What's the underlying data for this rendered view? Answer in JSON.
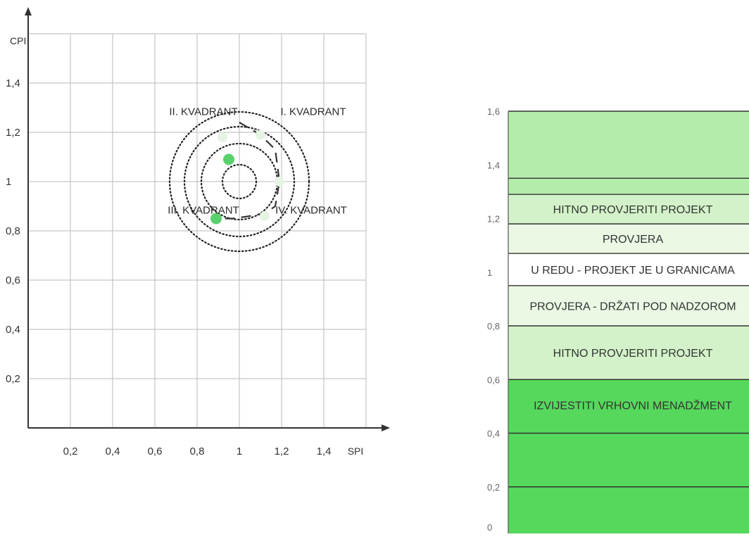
{
  "chart_data": [
    {
      "type": "scatter",
      "title": "",
      "xlabel": "SPI",
      "ylabel": "CPI",
      "xlim": [
        0,
        1.6
      ],
      "ylim": [
        0,
        1.6
      ],
      "x_ticks": [
        "0,2",
        "0,4",
        "0,6",
        "0,8",
        "1",
        "1,2",
        "1,4"
      ],
      "y_ticks": [
        "0,2",
        "0,4",
        "0,6",
        "0,8",
        "1",
        "1,2",
        "1,4"
      ],
      "grid": true,
      "center": [
        1.0,
        1.0
      ],
      "rings": [
        0.08,
        0.18,
        0.26,
        0.33
      ],
      "quadrant_labels": [
        {
          "text": "II. KVADRANT",
          "x": 0.83,
          "y": 1.27
        },
        {
          "text": "I. KVADRANT",
          "x": 1.35,
          "y": 1.27
        },
        {
          "text": "III. KVADRANT",
          "x": 0.83,
          "y": 0.87
        },
        {
          "text": "IV. KVADRANT",
          "x": 1.34,
          "y": 0.87
        }
      ],
      "trajectory": [
        {
          "x": 1.0,
          "y": 1.24
        },
        {
          "x": 1.1,
          "y": 1.19
        },
        {
          "x": 1.17,
          "y": 1.13
        },
        {
          "x": 1.19,
          "y": 1.0
        },
        {
          "x": 1.17,
          "y": 0.9
        },
        {
          "x": 1.12,
          "y": 0.87
        },
        {
          "x": 1.05,
          "y": 0.86
        },
        {
          "x": 0.97,
          "y": 0.85
        },
        {
          "x": 0.9,
          "y": 0.85
        }
      ],
      "highlight_points": [
        {
          "x": 0.95,
          "y": 1.09
        },
        {
          "x": 0.89,
          "y": 0.85
        }
      ],
      "faint_points": [
        {
          "x": 0.92,
          "y": 1.18
        },
        {
          "x": 1.1,
          "y": 1.19
        },
        {
          "x": 1.19,
          "y": 1.0
        },
        {
          "x": 1.12,
          "y": 0.86
        }
      ],
      "colors": {
        "highlight": "#5ad16c",
        "faint": "#e6f5e3",
        "grid": "#b8b8b8"
      }
    },
    {
      "type": "bar",
      "title": "",
      "ylim": [
        0,
        1.6
      ],
      "y_ticks": [
        "0",
        "0,2",
        "0,4",
        "0,6",
        "0,8",
        "1",
        "1,2",
        "1,4",
        "1,6"
      ],
      "bands": [
        {
          "from": 0.0,
          "to": 0.6,
          "label": "IZVIJESTITI VRHOVNI MENADŽMENT",
          "color": "#56d85c"
        },
        {
          "from": 0.6,
          "to": 0.8,
          "label": "HITNO PROVJERITI PROJEKT",
          "color": "#d3f2c9"
        },
        {
          "from": 0.8,
          "to": 0.95,
          "label": "PROVJERA - DRŽATI POD NADZOROM",
          "color": "#eaf8e4"
        },
        {
          "from": 0.95,
          "to": 1.07,
          "label": "U REDU - PROJEKT JE U GRANICAMA",
          "color": "#ffffff"
        },
        {
          "from": 1.07,
          "to": 1.18,
          "label": "PROVJERA",
          "color": "#eaf8e4"
        },
        {
          "from": 1.18,
          "to": 1.29,
          "label": "HITNO PROVJERITI PROJEKT",
          "color": "#d3f2c9"
        },
        {
          "from": 1.29,
          "to": 1.6,
          "label": "",
          "color": "#b4ecaa"
        }
      ],
      "extra_lines": [
        0.2,
        0.4,
        1.35
      ]
    }
  ]
}
